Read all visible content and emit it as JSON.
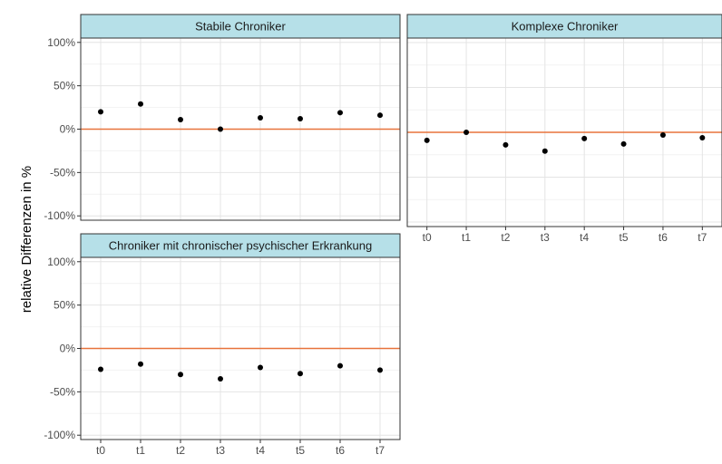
{
  "colors": {
    "strip_fill": "#b6e0e8",
    "reference_line": "#e8733c",
    "point": "#000000",
    "grid_major": "#e4e4e4",
    "grid_minor": "#f2f2f2",
    "panel_border": "#333333",
    "tick_label": "#4d4d4d"
  },
  "chart_data": {
    "type": "scatter",
    "ylabel": "relative Differenzen in %",
    "categories": [
      "t0",
      "t1",
      "t2",
      "t3",
      "t4",
      "t5",
      "t6",
      "t7"
    ],
    "ylim": [
      -105,
      105
    ],
    "yticks": [
      -100,
      -50,
      0,
      50,
      100
    ],
    "ytick_labels": [
      "-100%",
      "-50%",
      "0%",
      "50%",
      "100%"
    ],
    "reference_line_y": 0,
    "grid": true,
    "panels": [
      {
        "title": "Stabile Chroniker",
        "values": [
          20,
          29,
          11,
          0,
          13,
          12,
          19,
          16
        ]
      },
      {
        "title": "Komplexe Chroniker",
        "values": [
          -9,
          0,
          -14,
          -21,
          -7,
          -13,
          -3,
          -6
        ]
      },
      {
        "title": "Chroniker mit chronischer psychischer Erkrankung",
        "values": [
          -24,
          -18,
          -30,
          -35,
          -22,
          -29,
          -20,
          -25
        ]
      }
    ]
  }
}
